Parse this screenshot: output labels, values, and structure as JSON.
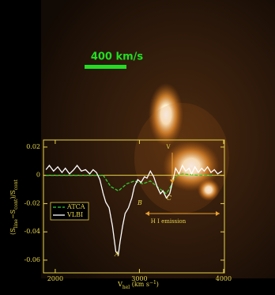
{
  "chart_data": {
    "type": "line",
    "scale_bar": {
      "label": "400 km/s",
      "color": "#22dd22"
    },
    "xlabel": {
      "main": "V",
      "sub": "hel",
      "rest": " (km s",
      "sup": "−1",
      "end": ")"
    },
    "ylabel": {
      "open": "(S",
      "sub1": "line",
      "mid": "−S",
      "sub2": "cont",
      "close": ")/S",
      "sub3": "cont"
    },
    "xlim": [
      1860,
      4010
    ],
    "ylim": [
      -0.069,
      0.025
    ],
    "xticks": [
      2000,
      3000,
      4000
    ],
    "yticks": [
      0.02,
      0,
      -0.02,
      -0.04,
      -0.06
    ],
    "zero_line": true,
    "axis_color": "#e8d44a",
    "legend": "lower left",
    "series": [
      {
        "name": "ATCA",
        "color": "#33cc33",
        "linestyle": "dashed",
        "x": [
          1890,
          2200,
          2570,
          2660,
          2750,
          2850,
          2940,
          3040,
          3130,
          3230,
          3320,
          3370,
          3420,
          3510,
          3700,
          3890
        ],
        "values": [
          0,
          0,
          0,
          -0.008,
          -0.011,
          -0.006,
          -0.004,
          -0.006,
          -0.004,
          -0.009,
          -0.013,
          -0.008,
          -0.001,
          0.001,
          0,
          0
        ]
      },
      {
        "name": "VLBI",
        "color": "#ffffff",
        "linestyle": "solid",
        "x": [
          1890,
          1930,
          1980,
          2030,
          2080,
          2120,
          2170,
          2220,
          2260,
          2310,
          2360,
          2410,
          2450,
          2490,
          2530,
          2570,
          2600,
          2640,
          2680,
          2720,
          2750,
          2770,
          2800,
          2830,
          2870,
          2910,
          2940,
          2980,
          3020,
          3060,
          3090,
          3130,
          3170,
          3210,
          3250,
          3280,
          3320,
          3360,
          3400,
          3430,
          3470,
          3510,
          3550,
          3590,
          3620,
          3660,
          3700,
          3740,
          3770,
          3810,
          3850,
          3890,
          3930,
          3980
        ],
        "values": [
          0.004,
          0.007,
          0.003,
          0.006,
          0.002,
          0.005,
          0.001,
          0.004,
          0.007,
          0.003,
          0.004,
          0.001,
          0.004,
          0.002,
          -0.003,
          -0.013,
          -0.019,
          -0.023,
          -0.036,
          -0.054,
          -0.056,
          -0.047,
          -0.036,
          -0.027,
          -0.023,
          -0.016,
          -0.008,
          -0.003,
          -0.005,
          -0.001,
          -0.002,
          0.003,
          -0.001,
          -0.008,
          -0.013,
          -0.011,
          -0.016,
          -0.013,
          -0.003,
          0.005,
          0.001,
          0.007,
          0.003,
          0.005,
          0.001,
          0.006,
          0.002,
          0.005,
          0.003,
          0.006,
          0.002,
          0.004,
          0.001,
          0.003
        ]
      }
    ],
    "annotations": [
      {
        "text": "A"
      },
      {
        "text": "B"
      },
      {
        "text": "C"
      },
      {
        "text": "H I emission"
      },
      {
        "text": "V"
      }
    ]
  }
}
